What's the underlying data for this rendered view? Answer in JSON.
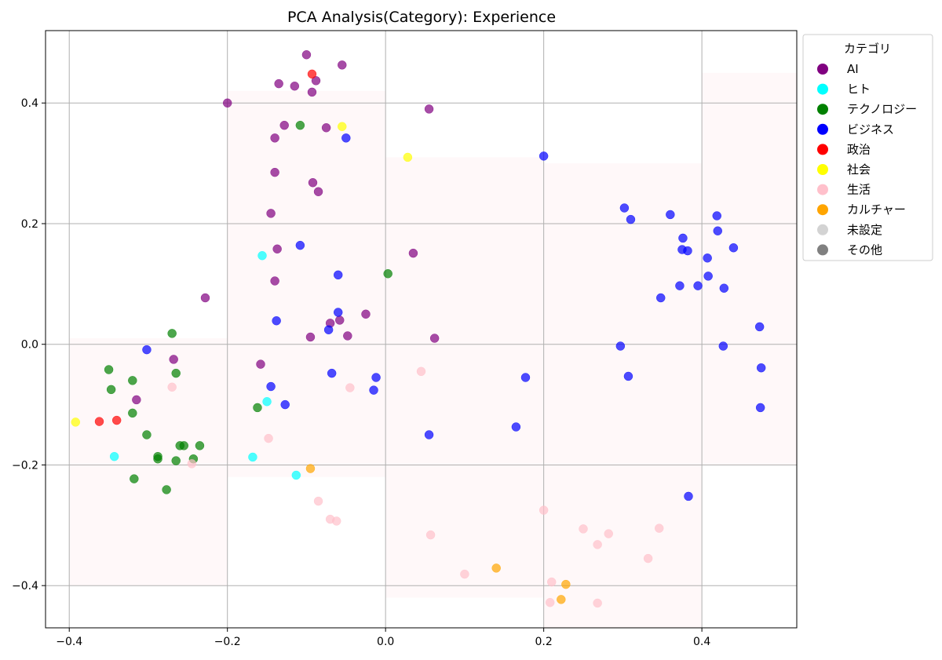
{
  "chart_data": {
    "type": "scatter",
    "title": "PCA Analysis(Category): Experience",
    "xlabel": "",
    "ylabel": "",
    "xlim": [
      -0.43,
      0.52
    ],
    "ylim": [
      -0.47,
      0.52
    ],
    "x_ticks": [
      -0.4,
      -0.2,
      0.0,
      0.2,
      0.4
    ],
    "x_tick_labels": [
      "−0.4",
      "−0.2",
      "0.0",
      "0.2",
      "0.4"
    ],
    "y_ticks": [
      -0.4,
      -0.2,
      0.0,
      0.2,
      0.4
    ],
    "y_tick_labels": [
      "−0.4",
      "−0.2",
      "0.0",
      "0.2",
      "0.4"
    ],
    "grid": true,
    "legend": {
      "title": "カテゴリ",
      "placement": "outside-top-right",
      "entries": [
        {
          "name": "AI",
          "color": "#800080"
        },
        {
          "name": "ヒト",
          "color": "#00ffff"
        },
        {
          "name": "テクノロジー",
          "color": "#008000"
        },
        {
          "name": "ビジネス",
          "color": "#0000ff"
        },
        {
          "name": "政治",
          "color": "#ff0000"
        },
        {
          "name": "社会",
          "color": "#ffff00"
        },
        {
          "name": "生活",
          "color": "#ffc0cb"
        },
        {
          "name": "カルチャー",
          "color": "#ffa500"
        },
        {
          "name": "未設定",
          "color": "#d3d3d3"
        },
        {
          "name": "その他",
          "color": "#808080"
        }
      ]
    },
    "series": [
      {
        "name": "AI",
        "color": "#800080",
        "points": [
          [
            -0.1,
            0.48
          ],
          [
            -0.055,
            0.463
          ],
          [
            -0.135,
            0.432
          ],
          [
            -0.088,
            0.437
          ],
          [
            -0.115,
            0.428
          ],
          [
            -0.093,
            0.418
          ],
          [
            -0.2,
            0.4
          ],
          [
            0.055,
            0.39
          ],
          [
            -0.128,
            0.363
          ],
          [
            -0.075,
            0.359
          ],
          [
            -0.14,
            0.342
          ],
          [
            -0.14,
            0.285
          ],
          [
            -0.092,
            0.268
          ],
          [
            -0.085,
            0.253
          ],
          [
            -0.145,
            0.217
          ],
          [
            -0.137,
            0.158
          ],
          [
            0.035,
            0.151
          ],
          [
            -0.14,
            0.105
          ],
          [
            -0.228,
            0.077
          ],
          [
            -0.025,
            0.05
          ],
          [
            -0.058,
            0.04
          ],
          [
            -0.07,
            0.035
          ],
          [
            -0.048,
            0.014
          ],
          [
            -0.095,
            0.012
          ],
          [
            0.062,
            0.01
          ],
          [
            -0.268,
            -0.025
          ],
          [
            -0.158,
            -0.033
          ],
          [
            -0.315,
            -0.092
          ]
        ]
      },
      {
        "name": "ヒト",
        "color": "#00ffff",
        "points": [
          [
            -0.156,
            0.147
          ],
          [
            -0.15,
            -0.095
          ],
          [
            -0.343,
            -0.186
          ],
          [
            -0.168,
            -0.187
          ],
          [
            -0.113,
            -0.217
          ]
        ]
      },
      {
        "name": "テクノロジー",
        "color": "#008000",
        "points": [
          [
            -0.108,
            0.363
          ],
          [
            0.003,
            0.117
          ],
          [
            -0.27,
            0.018
          ],
          [
            -0.35,
            -0.042
          ],
          [
            -0.265,
            -0.048
          ],
          [
            -0.32,
            -0.06
          ],
          [
            -0.347,
            -0.075
          ],
          [
            -0.162,
            -0.105
          ],
          [
            -0.32,
            -0.114
          ],
          [
            -0.302,
            -0.15
          ],
          [
            -0.255,
            -0.168
          ],
          [
            -0.26,
            -0.168
          ],
          [
            -0.235,
            -0.168
          ],
          [
            -0.288,
            -0.186
          ],
          [
            -0.288,
            -0.19
          ],
          [
            -0.243,
            -0.19
          ],
          [
            -0.265,
            -0.193
          ],
          [
            -0.318,
            -0.223
          ],
          [
            -0.277,
            -0.241
          ]
        ]
      },
      {
        "name": "ビジネス",
        "color": "#0000ff",
        "points": [
          [
            -0.05,
            0.342
          ],
          [
            0.2,
            0.312
          ],
          [
            0.302,
            0.226
          ],
          [
            0.31,
            0.207
          ],
          [
            0.36,
            0.215
          ],
          [
            0.419,
            0.213
          ],
          [
            0.42,
            0.188
          ],
          [
            0.376,
            0.176
          ],
          [
            0.375,
            0.157
          ],
          [
            0.382,
            0.155
          ],
          [
            0.44,
            0.16
          ],
          [
            0.407,
            0.143
          ],
          [
            -0.108,
            0.164
          ],
          [
            -0.06,
            0.115
          ],
          [
            0.408,
            0.113
          ],
          [
            0.372,
            0.097
          ],
          [
            0.395,
            0.097
          ],
          [
            0.428,
            0.093
          ],
          [
            0.348,
            0.077
          ],
          [
            -0.06,
            0.053
          ],
          [
            -0.138,
            0.039
          ],
          [
            0.473,
            0.029
          ],
          [
            -0.072,
            0.024
          ],
          [
            0.297,
            -0.003
          ],
          [
            0.427,
            -0.003
          ],
          [
            -0.302,
            -0.009
          ],
          [
            0.475,
            -0.039
          ],
          [
            -0.068,
            -0.048
          ],
          [
            0.307,
            -0.053
          ],
          [
            -0.012,
            -0.055
          ],
          [
            0.177,
            -0.055
          ],
          [
            -0.145,
            -0.07
          ],
          [
            -0.015,
            -0.076
          ],
          [
            -0.127,
            -0.1
          ],
          [
            0.474,
            -0.105
          ],
          [
            0.165,
            -0.137
          ],
          [
            0.055,
            -0.15
          ],
          [
            0.383,
            -0.252
          ]
        ]
      },
      {
        "name": "政治",
        "color": "#ff0000",
        "points": [
          [
            -0.093,
            0.448
          ],
          [
            -0.362,
            -0.128
          ],
          [
            -0.34,
            -0.126
          ]
        ]
      },
      {
        "name": "社会",
        "color": "#ffff00",
        "points": [
          [
            -0.055,
            0.361
          ],
          [
            0.028,
            0.31
          ],
          [
            -0.392,
            -0.129
          ]
        ]
      },
      {
        "name": "生活",
        "color": "#ffc0cb",
        "points": [
          [
            0.045,
            -0.045
          ],
          [
            -0.27,
            -0.071
          ],
          [
            -0.045,
            -0.072
          ],
          [
            -0.148,
            -0.156
          ],
          [
            -0.245,
            -0.198
          ],
          [
            -0.085,
            -0.26
          ],
          [
            -0.07,
            -0.29
          ],
          [
            -0.062,
            -0.293
          ],
          [
            0.2,
            -0.275
          ],
          [
            0.057,
            -0.316
          ],
          [
            0.25,
            -0.306
          ],
          [
            0.282,
            -0.314
          ],
          [
            0.268,
            -0.332
          ],
          [
            0.346,
            -0.305
          ],
          [
            0.332,
            -0.355
          ],
          [
            0.1,
            -0.381
          ],
          [
            0.21,
            -0.394
          ],
          [
            0.208,
            -0.428
          ],
          [
            0.268,
            -0.429
          ]
        ]
      },
      {
        "name": "カルチャー",
        "color": "#ffa500",
        "points": [
          [
            -0.095,
            -0.206
          ],
          [
            0.14,
            -0.371
          ],
          [
            0.228,
            -0.398
          ],
          [
            0.222,
            -0.423
          ]
        ]
      },
      {
        "name": "未設定",
        "color": "#d3d3d3",
        "points": []
      },
      {
        "name": "その他",
        "color": "#808080",
        "points": []
      }
    ]
  }
}
